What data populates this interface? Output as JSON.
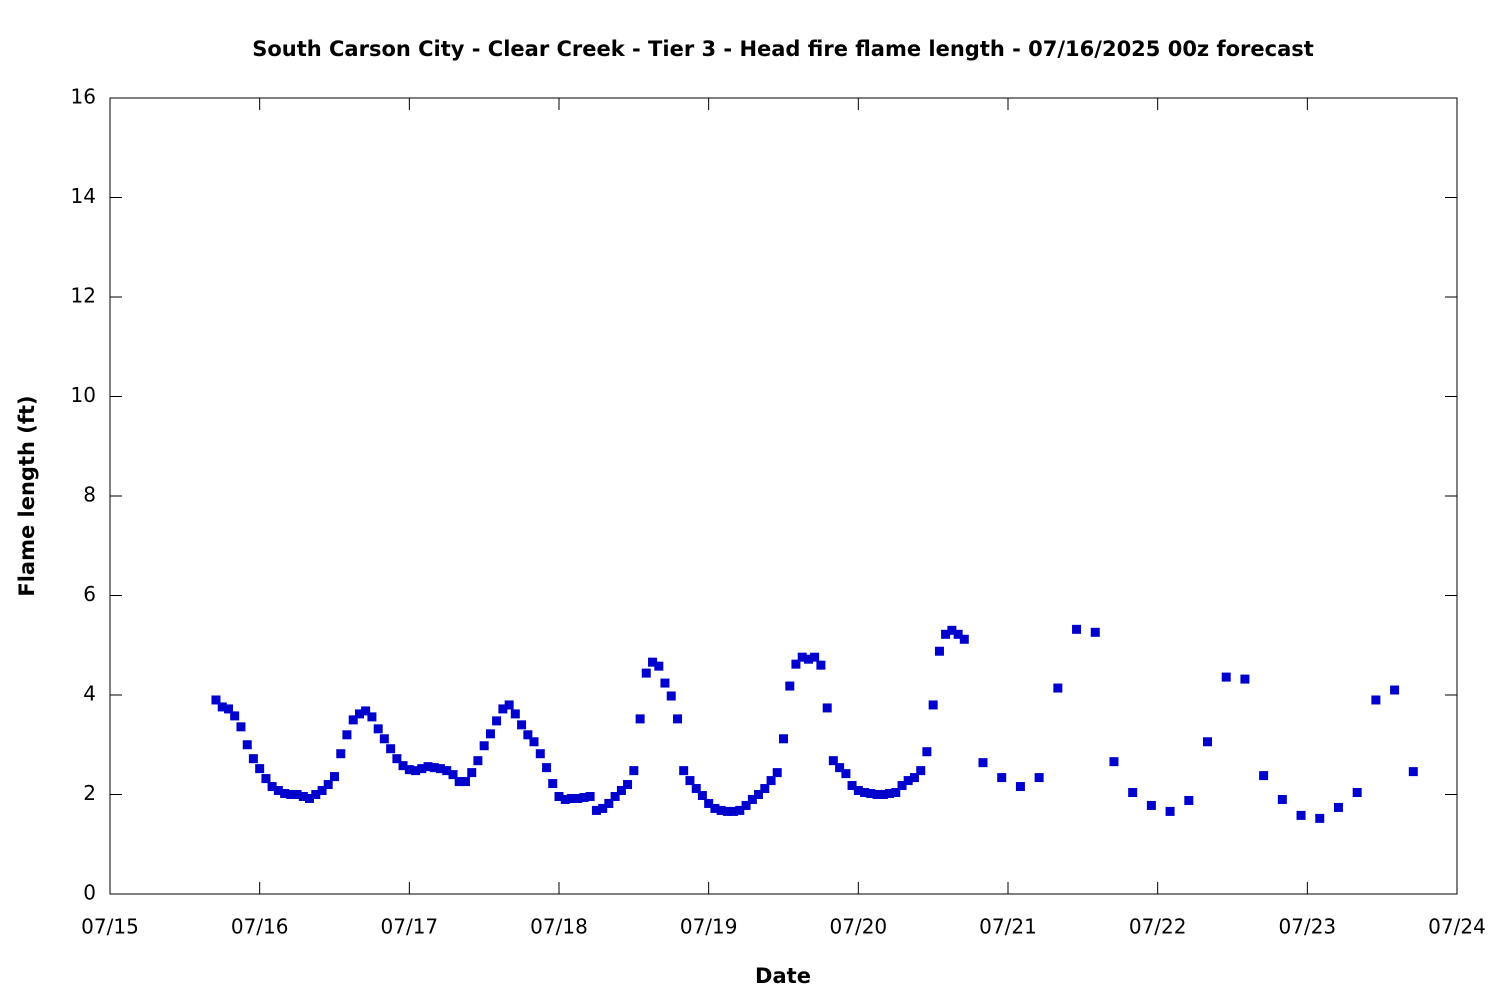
{
  "chart_data": {
    "type": "scatter",
    "title": "South Carson City - Clear Creek - Tier 3 - Head fire flame length - 07/16/2025 00z forecast",
    "x_label": "Date",
    "y_label": "Flame length (ft)",
    "color": "#0000cc",
    "xlim": [
      0,
      9
    ],
    "xticks": [
      {
        "value": 0,
        "label": "07/15"
      },
      {
        "value": 1,
        "label": "07/16"
      },
      {
        "value": 2,
        "label": "07/17"
      },
      {
        "value": 3,
        "label": "07/18"
      },
      {
        "value": 4,
        "label": "07/19"
      },
      {
        "value": 5,
        "label": "07/20"
      },
      {
        "value": 6,
        "label": "07/21"
      },
      {
        "value": 7,
        "label": "07/22"
      },
      {
        "value": 8,
        "label": "07/23"
      },
      {
        "value": 9,
        "label": "07/24"
      }
    ],
    "ylim": [
      0,
      16
    ],
    "yticks": [
      0,
      2,
      4,
      6,
      8,
      10,
      12,
      14,
      16
    ],
    "x": [
      0.708,
      0.75,
      0.792,
      0.833,
      0.875,
      0.917,
      0.958,
      1,
      1.042,
      1.083,
      1.125,
      1.167,
      1.208,
      1.25,
      1.292,
      1.333,
      1.375,
      1.417,
      1.458,
      1.5,
      1.542,
      1.583,
      1.625,
      1.667,
      1.708,
      1.75,
      1.792,
      1.833,
      1.875,
      1.917,
      1.958,
      2,
      2.042,
      2.083,
      2.125,
      2.167,
      2.208,
      2.25,
      2.292,
      2.333,
      2.375,
      2.417,
      2.458,
      2.5,
      2.542,
      2.583,
      2.625,
      2.667,
      2.708,
      2.75,
      2.792,
      2.833,
      2.875,
      2.917,
      2.958,
      3,
      3.042,
      3.083,
      3.125,
      3.167,
      3.208,
      3.25,
      3.292,
      3.333,
      3.375,
      3.417,
      3.458,
      3.5,
      3.542,
      3.583,
      3.625,
      3.667,
      3.708,
      3.75,
      3.792,
      3.833,
      3.875,
      3.917,
      3.958,
      4,
      4.042,
      4.083,
      4.125,
      4.167,
      4.208,
      4.25,
      4.292,
      4.333,
      4.375,
      4.417,
      4.458,
      4.5,
      4.542,
      4.583,
      4.625,
      4.667,
      4.708,
      4.75,
      4.792,
      4.833,
      4.875,
      4.917,
      4.958,
      5,
      5.042,
      5.083,
      5.125,
      5.167,
      5.208,
      5.25,
      5.292,
      5.333,
      5.375,
      5.417,
      5.458,
      5.5,
      5.542,
      5.583,
      5.625,
      5.667,
      5.708,
      5.833,
      5.958,
      6.083,
      6.208,
      6.333,
      6.458,
      6.583,
      6.708,
      6.833,
      6.958,
      7.083,
      7.208,
      7.333,
      7.458,
      7.583,
      7.708,
      7.833,
      7.958,
      8.083,
      8.208,
      8.333,
      8.458,
      8.583,
      8.708
    ],
    "values": [
      3.9,
      3.76,
      3.72,
      3.58,
      3.36,
      3.0,
      2.72,
      2.52,
      2.32,
      2.16,
      2.08,
      2.02,
      2.0,
      2.0,
      1.96,
      1.92,
      2.0,
      2.08,
      2.2,
      2.36,
      2.82,
      3.2,
      3.5,
      3.62,
      3.68,
      3.56,
      3.32,
      3.12,
      2.92,
      2.72,
      2.58,
      2.5,
      2.48,
      2.52,
      2.56,
      2.54,
      2.52,
      2.48,
      2.4,
      2.26,
      2.26,
      2.44,
      2.68,
      2.98,
      3.22,
      3.48,
      3.72,
      3.8,
      3.62,
      3.4,
      3.2,
      3.06,
      2.82,
      2.54,
      2.22,
      1.96,
      1.9,
      1.92,
      1.92,
      1.94,
      1.96,
      1.68,
      1.72,
      1.82,
      1.96,
      2.08,
      2.2,
      2.48,
      3.52,
      4.44,
      4.66,
      4.58,
      4.24,
      3.98,
      3.52,
      2.48,
      2.28,
      2.12,
      1.98,
      1.82,
      1.72,
      1.68,
      1.66,
      1.66,
      1.68,
      1.78,
      1.9,
      2.0,
      2.12,
      2.28,
      2.44,
      3.12,
      4.18,
      4.62,
      4.76,
      4.72,
      4.76,
      4.6,
      3.74,
      2.68,
      2.54,
      2.42,
      2.18,
      2.08,
      2.04,
      2.02,
      2.0,
      2.0,
      2.02,
      2.04,
      2.18,
      2.28,
      2.34,
      2.48,
      2.86,
      3.8,
      4.88,
      5.22,
      5.3,
      5.22,
      5.12,
      2.64,
      2.34,
      2.16,
      2.34,
      4.14,
      5.32,
      5.26,
      2.66,
      2.04,
      1.78,
      1.66,
      1.88,
      3.06,
      4.36,
      4.32,
      2.38,
      1.9,
      1.58,
      1.52,
      1.74,
      2.04,
      3.9,
      4.1,
      2.46
    ]
  }
}
